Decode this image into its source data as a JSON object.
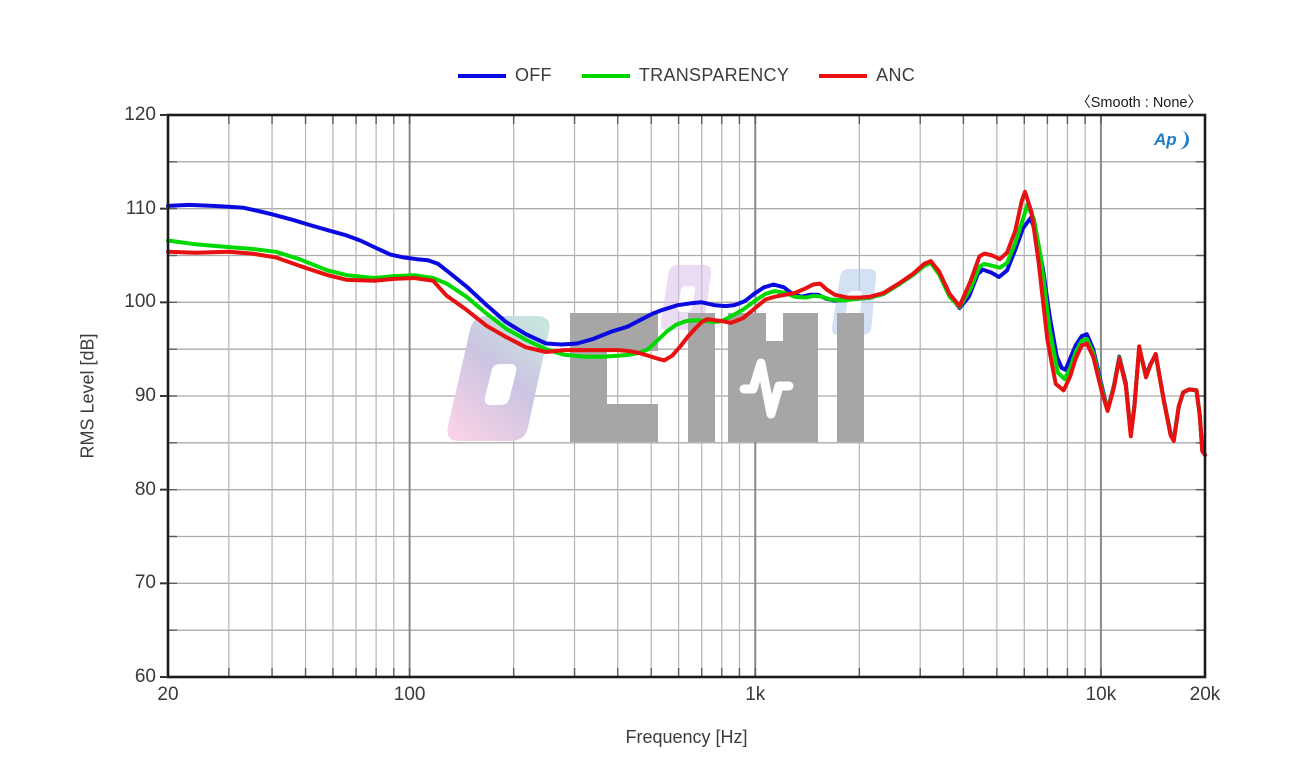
{
  "annotations": {
    "smooth_label": "〈Smooth : None〉",
    "ap_logo_text": "Ap"
  },
  "watermark": {
    "text": "0디비",
    "gray": "#a6a6a6",
    "gradient_colors": [
      "#c8e6e0",
      "#cbc4e2",
      "#f8d2e6"
    ],
    "small_glyph_colors": [
      "#d9bfe9",
      "#b7cdec"
    ]
  },
  "chart_data": {
    "type": "line",
    "title": "",
    "xlabel": "Frequency [Hz]",
    "ylabel": "RMS Level [dB]",
    "x_scale": "log",
    "xlim": [
      20,
      20000
    ],
    "ylim": [
      60,
      120
    ],
    "grid": true,
    "legend_position": "top-center",
    "y_minor_step": 5,
    "x_ticks": [
      {
        "value": 20,
        "label": "20"
      },
      {
        "value": 100,
        "label": "100"
      },
      {
        "value": 1000,
        "label": "1k"
      },
      {
        "value": 10000,
        "label": "10k"
      },
      {
        "value": 20000,
        "label": "20k"
      }
    ],
    "y_ticks": [
      {
        "value": 120,
        "label": "120"
      },
      {
        "value": 110,
        "label": "110"
      },
      {
        "value": 100,
        "label": "100"
      },
      {
        "value": 90,
        "label": "90"
      },
      {
        "value": 80,
        "label": "80"
      },
      {
        "value": 70,
        "label": "70"
      },
      {
        "value": 60,
        "label": "60"
      }
    ],
    "series": [
      {
        "name": "OFF",
        "color": "#0a0ae0",
        "points": [
          [
            20,
            110.3
          ],
          [
            23,
            110.4
          ],
          [
            27,
            110.3
          ],
          [
            30,
            110.2
          ],
          [
            33,
            110.1
          ],
          [
            37,
            109.7
          ],
          [
            40,
            109.4
          ],
          [
            46,
            108.8
          ],
          [
            52,
            108.2
          ],
          [
            58,
            107.7
          ],
          [
            65,
            107.2
          ],
          [
            72,
            106.6
          ],
          [
            80,
            105.8
          ],
          [
            88,
            105.1
          ],
          [
            96,
            104.8
          ],
          [
            105,
            104.6
          ],
          [
            113,
            104.5
          ],
          [
            121,
            104.1
          ],
          [
            130,
            103.2
          ],
          [
            146,
            101.7
          ],
          [
            167,
            99.7
          ],
          [
            190,
            97.9
          ],
          [
            217,
            96.6
          ],
          [
            248,
            95.6
          ],
          [
            275,
            95.5
          ],
          [
            305,
            95.6
          ],
          [
            340,
            96.1
          ],
          [
            385,
            96.9
          ],
          [
            427,
            97.4
          ],
          [
            470,
            98.2
          ],
          [
            505,
            98.8
          ],
          [
            540,
            99.2
          ],
          [
            597,
            99.7
          ],
          [
            650,
            99.9
          ],
          [
            700,
            100.0
          ],
          [
            760,
            99.7
          ],
          [
            820,
            99.6
          ],
          [
            870,
            99.7
          ],
          [
            930,
            100.1
          ],
          [
            1000,
            101.0
          ],
          [
            1060,
            101.6
          ],
          [
            1130,
            101.9
          ],
          [
            1210,
            101.6
          ],
          [
            1280,
            100.9
          ],
          [
            1360,
            100.6
          ],
          [
            1440,
            100.8
          ],
          [
            1520,
            100.8
          ],
          [
            1600,
            100.4
          ],
          [
            1700,
            100.2
          ],
          [
            1850,
            100.3
          ],
          [
            2000,
            100.4
          ],
          [
            2150,
            100.5
          ],
          [
            2350,
            100.9
          ],
          [
            2600,
            101.9
          ],
          [
            2850,
            102.9
          ],
          [
            3080,
            103.9
          ],
          [
            3220,
            104.3
          ],
          [
            3400,
            103.2
          ],
          [
            3650,
            100.8
          ],
          [
            3900,
            99.4
          ],
          [
            4150,
            100.6
          ],
          [
            4400,
            103.0
          ],
          [
            4550,
            103.5
          ],
          [
            4800,
            103.2
          ],
          [
            5070,
            102.7
          ],
          [
            5350,
            103.4
          ],
          [
            5650,
            105.6
          ],
          [
            5950,
            107.9
          ],
          [
            6260,
            109.0
          ],
          [
            6500,
            107.3
          ],
          [
            6800,
            103.5
          ],
          [
            7100,
            98.6
          ],
          [
            7450,
            94.2
          ],
          [
            7700,
            93.0
          ],
          [
            7900,
            92.8
          ],
          [
            8150,
            94.0
          ],
          [
            8450,
            95.4
          ],
          [
            8800,
            96.4
          ],
          [
            9100,
            96.6
          ],
          [
            9500,
            95.0
          ],
          [
            10050,
            91.1
          ],
          [
            10450,
            88.5
          ],
          [
            10900,
            91.1
          ],
          [
            11300,
            94.2
          ],
          [
            11800,
            91.4
          ],
          [
            12200,
            86.0
          ],
          [
            12500,
            89.0
          ],
          [
            12900,
            95.1
          ],
          [
            13500,
            92.2
          ],
          [
            13900,
            93.4
          ],
          [
            14400,
            94.4
          ],
          [
            15200,
            89.6
          ],
          [
            15900,
            86.0
          ],
          [
            16250,
            85.4
          ],
          [
            16800,
            88.9
          ],
          [
            17300,
            90.4
          ],
          [
            18000,
            90.7
          ],
          [
            18900,
            90.6
          ],
          [
            19300,
            88.0
          ],
          [
            19650,
            84.2
          ],
          [
            20000,
            83.7
          ]
        ]
      },
      {
        "name": "TRANSPARENCY",
        "color": "#00d900",
        "points": [
          [
            20,
            106.6
          ],
          [
            24,
            106.2
          ],
          [
            30,
            105.9
          ],
          [
            35,
            105.7
          ],
          [
            41,
            105.4
          ],
          [
            48,
            104.6
          ],
          [
            58,
            103.4
          ],
          [
            66,
            102.9
          ],
          [
            79,
            102.6
          ],
          [
            90,
            102.8
          ],
          [
            103,
            102.9
          ],
          [
            117,
            102.6
          ],
          [
            128,
            102.0
          ],
          [
            146,
            100.6
          ],
          [
            167,
            98.8
          ],
          [
            190,
            97.2
          ],
          [
            217,
            96.0
          ],
          [
            248,
            95.0
          ],
          [
            280,
            94.4
          ],
          [
            320,
            94.2
          ],
          [
            360,
            94.2
          ],
          [
            400,
            94.3
          ],
          [
            430,
            94.4
          ],
          [
            460,
            94.6
          ],
          [
            490,
            95.0
          ],
          [
            520,
            95.9
          ],
          [
            555,
            96.9
          ],
          [
            590,
            97.6
          ],
          [
            630,
            98.0
          ],
          [
            680,
            98.1
          ],
          [
            720,
            98.0
          ],
          [
            760,
            97.9
          ],
          [
            800,
            98.0
          ],
          [
            850,
            98.5
          ],
          [
            920,
            99.2
          ],
          [
            1000,
            100.2
          ],
          [
            1070,
            100.9
          ],
          [
            1140,
            101.2
          ],
          [
            1220,
            101.0
          ],
          [
            1300,
            100.6
          ],
          [
            1400,
            100.5
          ],
          [
            1480,
            100.7
          ],
          [
            1560,
            100.6
          ],
          [
            1650,
            100.3
          ],
          [
            1800,
            100.2
          ],
          [
            2000,
            100.4
          ],
          [
            2150,
            100.5
          ],
          [
            2350,
            100.9
          ],
          [
            2600,
            101.9
          ],
          [
            2850,
            102.9
          ],
          [
            3080,
            103.9
          ],
          [
            3220,
            104.2
          ],
          [
            3400,
            103.0
          ],
          [
            3650,
            100.6
          ],
          [
            3900,
            99.5
          ],
          [
            4200,
            101.5
          ],
          [
            4450,
            103.8
          ],
          [
            4600,
            104.1
          ],
          [
            4850,
            103.9
          ],
          [
            5100,
            103.7
          ],
          [
            5350,
            104.2
          ],
          [
            5650,
            106.3
          ],
          [
            5950,
            108.9
          ],
          [
            6120,
            110.4
          ],
          [
            6400,
            108.9
          ],
          [
            6700,
            104.8
          ],
          [
            7100,
            97.2
          ],
          [
            7500,
            92.5
          ],
          [
            7850,
            91.8
          ],
          [
            8150,
            93.0
          ],
          [
            8450,
            94.7
          ],
          [
            8800,
            95.9
          ],
          [
            9100,
            96.1
          ],
          [
            9500,
            94.6
          ],
          [
            10050,
            90.8
          ],
          [
            10450,
            88.5
          ],
          [
            10900,
            91.0
          ],
          [
            11300,
            94.1
          ],
          [
            11800,
            91.2
          ],
          [
            12200,
            85.9
          ],
          [
            12500,
            88.9
          ],
          [
            12900,
            95.0
          ],
          [
            13500,
            92.1
          ],
          [
            13900,
            93.3
          ],
          [
            14400,
            94.4
          ],
          [
            15200,
            89.5
          ],
          [
            15900,
            85.9
          ],
          [
            16250,
            85.3
          ],
          [
            16800,
            88.9
          ],
          [
            17300,
            90.4
          ],
          [
            18000,
            90.7
          ],
          [
            18900,
            90.6
          ],
          [
            19300,
            88.0
          ],
          [
            19650,
            84.2
          ],
          [
            20000,
            83.7
          ]
        ]
      },
      {
        "name": "ANC",
        "color": "#e81010",
        "points": [
          [
            20,
            105.4
          ],
          [
            24,
            105.3
          ],
          [
            30,
            105.4
          ],
          [
            35,
            105.2
          ],
          [
            41,
            104.8
          ],
          [
            48,
            103.9
          ],
          [
            58,
            102.9
          ],
          [
            66,
            102.4
          ],
          [
            79,
            102.3
          ],
          [
            90,
            102.5
          ],
          [
            103,
            102.6
          ],
          [
            117,
            102.3
          ],
          [
            128,
            100.7
          ],
          [
            146,
            99.2
          ],
          [
            167,
            97.5
          ],
          [
            190,
            96.3
          ],
          [
            217,
            95.2
          ],
          [
            248,
            94.7
          ],
          [
            280,
            94.9
          ],
          [
            320,
            94.9
          ],
          [
            360,
            94.9
          ],
          [
            400,
            94.9
          ],
          [
            430,
            94.8
          ],
          [
            460,
            94.6
          ],
          [
            490,
            94.3
          ],
          [
            520,
            94.0
          ],
          [
            545,
            93.8
          ],
          [
            575,
            94.3
          ],
          [
            610,
            95.4
          ],
          [
            640,
            96.4
          ],
          [
            670,
            97.2
          ],
          [
            700,
            97.9
          ],
          [
            725,
            98.2
          ],
          [
            760,
            98.1
          ],
          [
            800,
            98.0
          ],
          [
            850,
            97.8
          ],
          [
            920,
            98.3
          ],
          [
            1000,
            99.4
          ],
          [
            1070,
            100.3
          ],
          [
            1140,
            100.6
          ],
          [
            1220,
            100.8
          ],
          [
            1300,
            101.0
          ],
          [
            1400,
            101.5
          ],
          [
            1470,
            101.9
          ],
          [
            1540,
            102.0
          ],
          [
            1620,
            101.3
          ],
          [
            1700,
            100.8
          ],
          [
            1850,
            100.5
          ],
          [
            2000,
            100.5
          ],
          [
            2150,
            100.6
          ],
          [
            2350,
            101.0
          ],
          [
            2600,
            102.0
          ],
          [
            2850,
            103.0
          ],
          [
            3080,
            104.1
          ],
          [
            3220,
            104.4
          ],
          [
            3400,
            103.3
          ],
          [
            3650,
            100.9
          ],
          [
            3900,
            99.6
          ],
          [
            4200,
            102.3
          ],
          [
            4450,
            104.9
          ],
          [
            4600,
            105.2
          ],
          [
            4850,
            105.0
          ],
          [
            5100,
            104.6
          ],
          [
            5350,
            105.3
          ],
          [
            5650,
            107.6
          ],
          [
            5900,
            110.8
          ],
          [
            6030,
            111.8
          ],
          [
            6300,
            109.6
          ],
          [
            6600,
            104.3
          ],
          [
            7000,
            96.0
          ],
          [
            7400,
            91.3
          ],
          [
            7800,
            90.6
          ],
          [
            8150,
            92.1
          ],
          [
            8450,
            94.0
          ],
          [
            8800,
            95.4
          ],
          [
            9100,
            95.6
          ],
          [
            9500,
            94.2
          ],
          [
            10050,
            90.5
          ],
          [
            10450,
            88.4
          ],
          [
            10900,
            90.9
          ],
          [
            11300,
            94.0
          ],
          [
            11800,
            91.1
          ],
          [
            12200,
            85.7
          ],
          [
            12500,
            88.8
          ],
          [
            12900,
            95.3
          ],
          [
            13500,
            92.0
          ],
          [
            13900,
            93.3
          ],
          [
            14400,
            94.5
          ],
          [
            15200,
            89.5
          ],
          [
            15900,
            85.8
          ],
          [
            16250,
            85.2
          ],
          [
            16800,
            88.9
          ],
          [
            17300,
            90.4
          ],
          [
            18000,
            90.7
          ],
          [
            18900,
            90.6
          ],
          [
            19300,
            88.0
          ],
          [
            19650,
            84.1
          ],
          [
            20000,
            83.7
          ]
        ]
      }
    ]
  }
}
